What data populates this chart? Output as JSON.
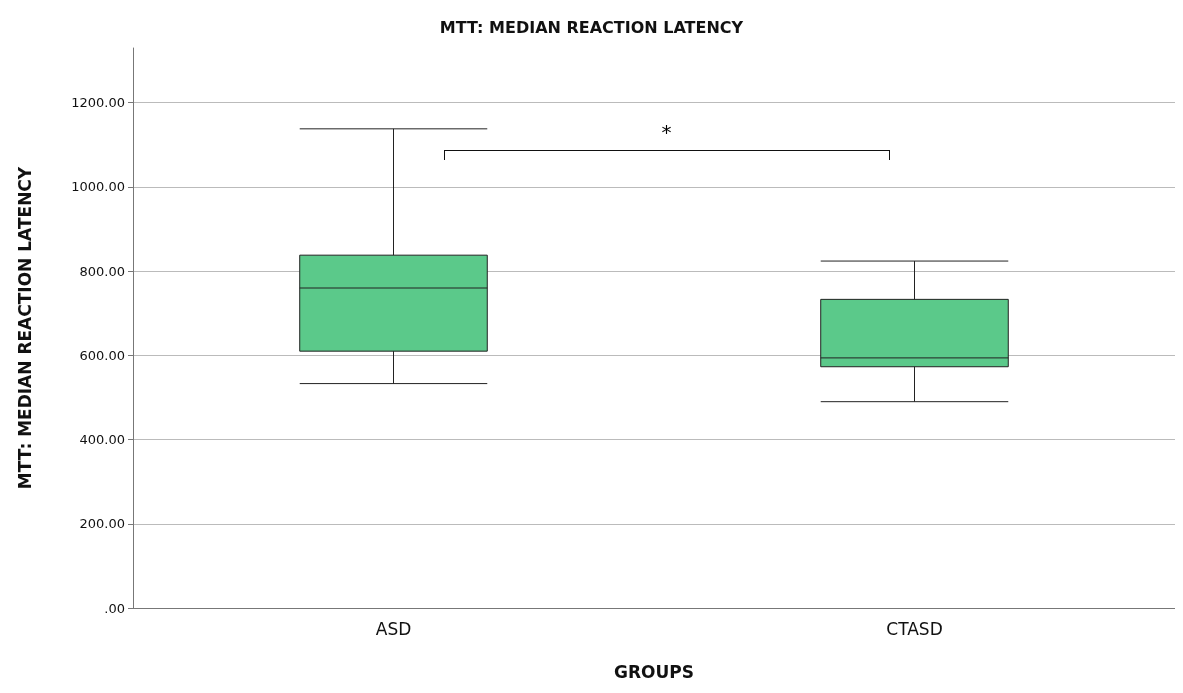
{
  "chart_data": {
    "type": "box",
    "title": "MTT: MEDIAN REACTION LATENCY",
    "xlabel": "GROUPS",
    "ylabel": "MTT: MEDIAN REACTION LATENCY",
    "categories": [
      "ASD",
      "CTASD"
    ],
    "boxes": [
      {
        "low": 533,
        "q1": 610,
        "median": 760,
        "q3": 838,
        "high": 1138
      },
      {
        "low": 490,
        "q1": 573,
        "median": 594,
        "q3": 733,
        "high": 824
      }
    ],
    "color": "#5bc98a",
    "ylim": [
      0,
      1330
    ],
    "yticks": [
      {
        "value": 0,
        "label": ".00"
      },
      {
        "value": 200,
        "label": "200.00"
      },
      {
        "value": 400,
        "label": "400.00"
      },
      {
        "value": 600,
        "label": "600.00"
      },
      {
        "value": 800,
        "label": "800.00"
      },
      {
        "value": 1000,
        "label": "1000.00"
      },
      {
        "value": 1200,
        "label": "1200.00"
      }
    ],
    "grid": "y",
    "annotations": [
      "*"
    ]
  }
}
